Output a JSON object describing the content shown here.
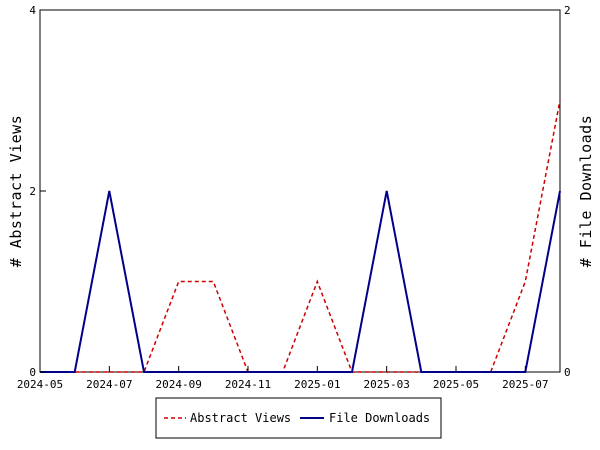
{
  "chart_data": {
    "type": "line",
    "title": "",
    "xlabel": "",
    "ylabel": "# Abstract Views",
    "y2label": "# File Downloads",
    "x": [
      "2024-05",
      "2024-06",
      "2024-07",
      "2024-08",
      "2024-09",
      "2024-10",
      "2024-11",
      "2024-12",
      "2025-01",
      "2025-02",
      "2025-03",
      "2025-04",
      "2025-05",
      "2025-06",
      "2025-07",
      "2025-08"
    ],
    "x_ticks": [
      "2024-05",
      "2024-07",
      "2024-09",
      "2024-11",
      "2025-01",
      "2025-03",
      "2025-05",
      "2025-07"
    ],
    "ylim": [
      0,
      4
    ],
    "y_ticks": [
      "0",
      "2",
      "4"
    ],
    "y2lim": [
      0,
      2
    ],
    "y2_ticks": [
      "0",
      "2"
    ],
    "grid": false,
    "legend_position": "bottom-center",
    "series": [
      {
        "name": "Abstract Views",
        "axis": "left",
        "color": "#cc0000",
        "style": "dashed",
        "values": [
          0,
          0,
          0,
          0,
          1,
          1,
          0,
          0,
          1,
          0,
          0,
          0,
          0,
          0,
          1,
          3
        ]
      },
      {
        "name": "File Downloads",
        "axis": "right",
        "color": "#00008b",
        "style": "solid",
        "values": [
          0,
          0,
          1,
          0,
          0,
          0,
          0,
          0,
          0,
          0,
          1,
          0,
          0,
          0,
          0,
          1
        ]
      }
    ]
  }
}
